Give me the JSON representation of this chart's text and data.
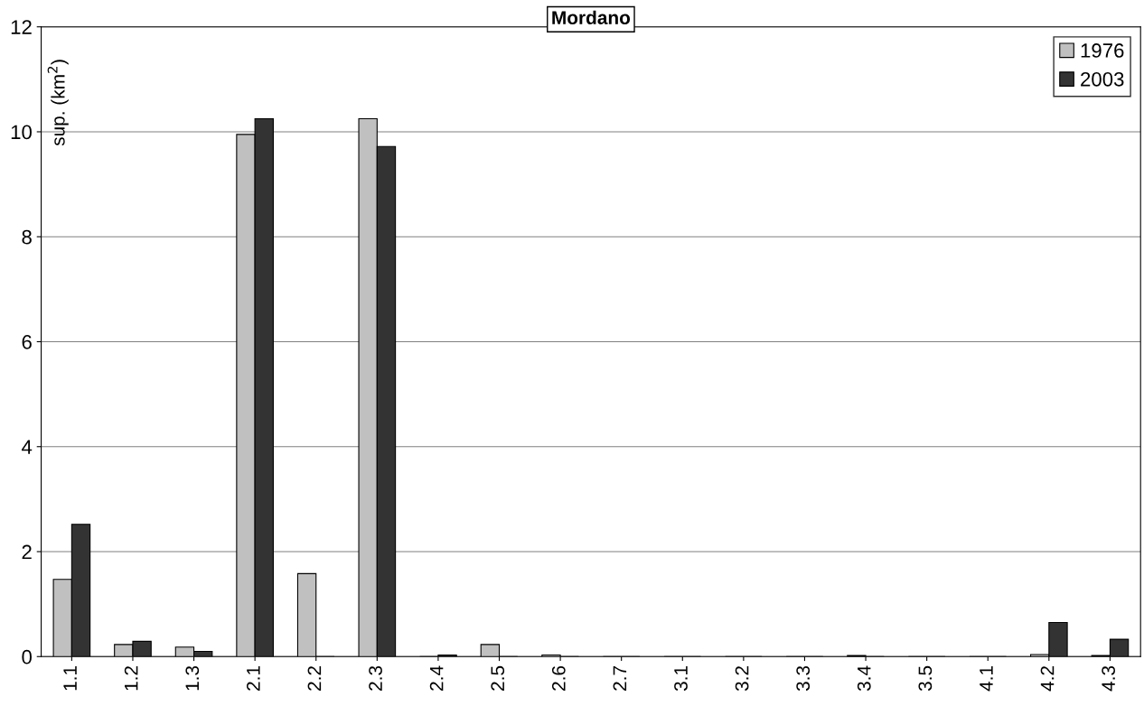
{
  "chart_data": {
    "type": "bar",
    "title": "Mordano",
    "ylabel": "sup. (km$^{2}$)",
    "categories": [
      "1.1",
      "1.2",
      "1.3",
      "2.1",
      "2.2",
      "2.3",
      "2.4",
      "2.5",
      "2.6",
      "2.7",
      "3.1",
      "3.2",
      "3.3",
      "3.4",
      "3.5",
      "4.1",
      "4.2",
      "4.3"
    ],
    "series": [
      {
        "name": "1976",
        "color": "#c0c0c0",
        "values": [
          1.47,
          0.23,
          0.18,
          9.95,
          1.58,
          10.25,
          0,
          0.23,
          0.03,
          0,
          0,
          0,
          0,
          0.02,
          0,
          0,
          0.04,
          0.02
        ]
      },
      {
        "name": "2003",
        "color": "#333333",
        "values": [
          2.52,
          0.29,
          0.1,
          10.25,
          0,
          9.72,
          0.03,
          0,
          0,
          0,
          0,
          0,
          0,
          0,
          0,
          0,
          0.65,
          0.33
        ]
      }
    ],
    "ylim": [
      0,
      12
    ],
    "yticks": [
      0,
      2,
      4,
      6,
      8,
      10,
      12
    ],
    "grid": "y",
    "legend": "top right"
  }
}
